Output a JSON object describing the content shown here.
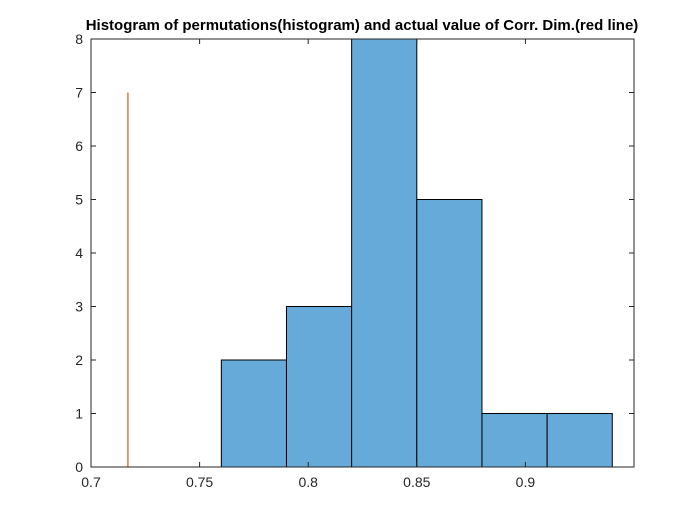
{
  "chart_data": {
    "type": "bar",
    "title": "Histogram of permutations(histogram) and actual value of Corr. Dim.(red line)",
    "xlabel": "",
    "ylabel": "",
    "xlim": [
      0.7,
      0.95
    ],
    "ylim": [
      0,
      8
    ],
    "grid": false,
    "bins": [
      {
        "start": 0.76,
        "end": 0.79,
        "count": 2
      },
      {
        "start": 0.79,
        "end": 0.82,
        "count": 3
      },
      {
        "start": 0.82,
        "end": 0.85,
        "count": 8
      },
      {
        "start": 0.85,
        "end": 0.88,
        "count": 5
      },
      {
        "start": 0.88,
        "end": 0.91,
        "count": 1
      },
      {
        "start": 0.91,
        "end": 0.94,
        "count": 1
      }
    ],
    "actual_value_line": {
      "x": 0.717,
      "y_from": 0,
      "y_to": 7
    },
    "x_ticks": [
      {
        "value": 0.7,
        "label": "0.7"
      },
      {
        "value": 0.75,
        "label": "0.75"
      },
      {
        "value": 0.8,
        "label": "0.8"
      },
      {
        "value": 0.85,
        "label": "0.85"
      },
      {
        "value": 0.9,
        "label": "0.9"
      }
    ],
    "y_ticks": [
      {
        "value": 0,
        "label": "0"
      },
      {
        "value": 1,
        "label": "1"
      },
      {
        "value": 2,
        "label": "2"
      },
      {
        "value": 3,
        "label": "3"
      },
      {
        "value": 4,
        "label": "4"
      },
      {
        "value": 5,
        "label": "5"
      },
      {
        "value": 6,
        "label": "6"
      },
      {
        "value": 7,
        "label": "7"
      },
      {
        "value": 8,
        "label": "8"
      }
    ],
    "colors": {
      "bar_fill": "#66aad9",
      "bar_edge": "#000000",
      "line": "#d95319",
      "axis": "#262626"
    }
  }
}
